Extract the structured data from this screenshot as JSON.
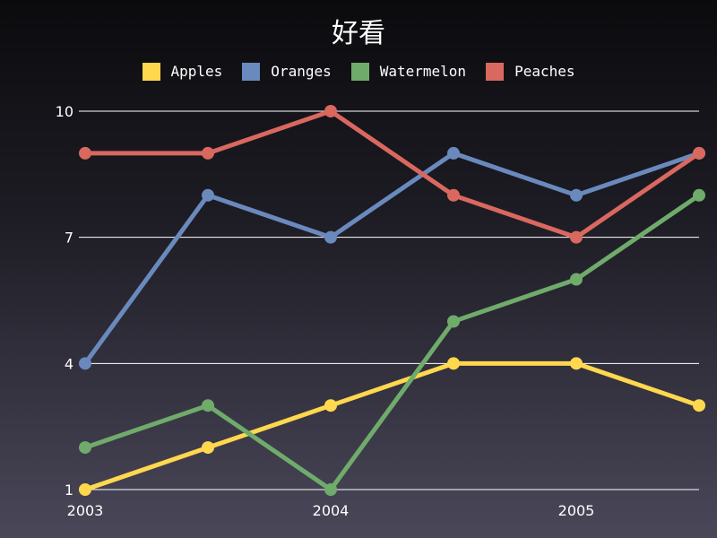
{
  "chart_data": {
    "type": "line",
    "title": "好看",
    "xlabel": "",
    "ylabel": "",
    "x": [
      2003,
      2003.5,
      2004,
      2004.5,
      2005,
      2005.5
    ],
    "x_ticks": [
      2003,
      2004,
      2005
    ],
    "x_tick_labels": [
      "2003",
      "2004",
      "2005"
    ],
    "y_ticks": [
      1,
      4,
      7,
      10
    ],
    "y_tick_labels": [
      "1",
      "4",
      "7",
      "10"
    ],
    "xlim": [
      2003,
      2005.5
    ],
    "ylim": [
      1,
      10
    ],
    "grid": "horizontal",
    "legend_position": "top-center",
    "series": [
      {
        "name": "Apples",
        "color": "#ffd84d",
        "values": [
          1,
          2,
          3,
          4,
          4,
          3
        ]
      },
      {
        "name": "Oranges",
        "color": "#6a89bd",
        "values": [
          4,
          8,
          7,
          9,
          8,
          9
        ]
      },
      {
        "name": "Watermelon",
        "color": "#6fab6b",
        "values": [
          2,
          3,
          1,
          5,
          6,
          8
        ]
      },
      {
        "name": "Peaches",
        "color": "#d9685f",
        "values": [
          9,
          9,
          10,
          8,
          7,
          9
        ]
      }
    ]
  }
}
